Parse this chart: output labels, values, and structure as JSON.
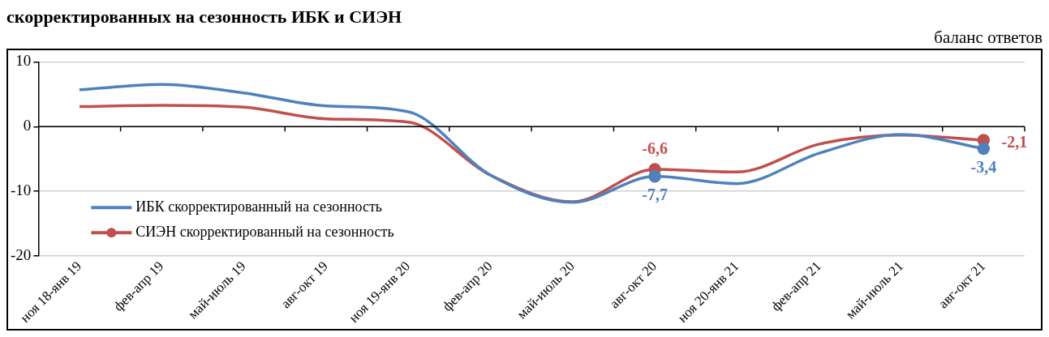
{
  "chart_data": {
    "type": "line",
    "title": "скорректированных на сезонность ИБК и СИЭН",
    "ylabel": "баланс ответов",
    "categories": [
      "ноя 18-янв 19",
      "фев-апр 19",
      "май-июль 19",
      "авг-окт 19",
      "ноя 19-янв 20",
      "фев-апр 20",
      "май-июль 20",
      "авг-окт 20",
      "ноя 20-янв 21",
      "фев-апр 21",
      "май-июль 21",
      "авг-окт 21"
    ],
    "series": [
      {
        "name": "ИБК скорректированный на сезонность",
        "color": "#4f81bd",
        "values": [
          5.7,
          6.5,
          5.2,
          3.2,
          2.3,
          -7.5,
          -11.7,
          -7.7,
          -8.8,
          -4.1,
          -1.2,
          -3.4
        ],
        "value_labels": [
          null,
          null,
          null,
          null,
          null,
          null,
          null,
          "-7,7",
          null,
          null,
          null,
          "-3,4"
        ]
      },
      {
        "name": "СИЭН скорректированный на сезонность",
        "color": "#c0504d",
        "values": [
          3.1,
          3.3,
          3.0,
          1.2,
          0.7,
          -7.5,
          -11.6,
          -6.6,
          -7.0,
          -2.7,
          -1.3,
          -2.1
        ],
        "value_labels": [
          null,
          null,
          null,
          null,
          null,
          null,
          null,
          "-6,6",
          null,
          null,
          null,
          "-2,1"
        ]
      }
    ],
    "ylim": [
      -20,
      10
    ],
    "yticks": [
      -20,
      -10,
      0,
      10
    ],
    "grid": "y",
    "legend": "bottom left"
  }
}
